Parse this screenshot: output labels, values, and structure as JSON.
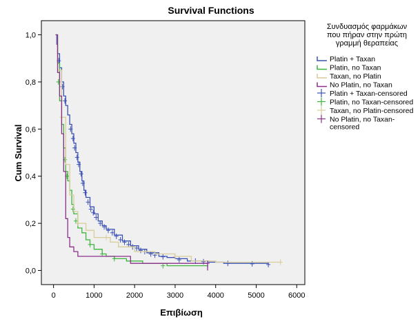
{
  "chart_data": {
    "type": "line",
    "title": "Survival Functions",
    "xlabel": "Επιβίωση",
    "ylabel": "Cum Survival",
    "xlim": [
      -300,
      6200
    ],
    "ylim": [
      -0.06,
      1.06
    ],
    "xticks": [
      "0",
      "1000",
      "2000",
      "3000",
      "4000",
      "5000",
      "6000"
    ],
    "yticks": [
      "0,0",
      "0,2",
      "0,4",
      "0,6",
      "0,8",
      "1,0"
    ],
    "grid": false,
    "legend": {
      "placement": "right",
      "title_lines": [
        "Συνδυασμός φαρμάκων",
        "που πήραν στην πρώτη",
        "γραμμή θεραπείας"
      ],
      "entries": [
        {
          "label_lines": [
            "Platin + Taxan"
          ],
          "color": "#3a50b4",
          "kind": "line"
        },
        {
          "label_lines": [
            "Platin, no Taxan"
          ],
          "color": "#3cb43c",
          "kind": "line"
        },
        {
          "label_lines": [
            "Taxan, no Platin"
          ],
          "color": "#d7cc9a",
          "kind": "line"
        },
        {
          "label_lines": [
            "No Platin, no Taxan"
          ],
          "color": "#8a2f8a",
          "kind": "line"
        },
        {
          "label_lines": [
            "Platin + Taxan-censored"
          ],
          "color": "#3a50b4",
          "kind": "censor"
        },
        {
          "label_lines": [
            "Platin, no Taxan-censored"
          ],
          "color": "#3cb43c",
          "kind": "censor"
        },
        {
          "label_lines": [
            "Taxan, no Platin-censored"
          ],
          "color": "#d7cc9a",
          "kind": "censor"
        },
        {
          "label_lines": [
            "No Platin, no Taxan-",
            "censored"
          ],
          "color": "#8a2f8a",
          "kind": "censor"
        }
      ]
    },
    "series": [
      {
        "name": "Platin + Taxan",
        "color": "#3a50b4",
        "points": [
          [
            50,
            1.0
          ],
          [
            80,
            0.96
          ],
          [
            100,
            0.92
          ],
          [
            150,
            0.86
          ],
          [
            200,
            0.8
          ],
          [
            250,
            0.74
          ],
          [
            300,
            0.7
          ],
          [
            350,
            0.66
          ],
          [
            400,
            0.62
          ],
          [
            450,
            0.58
          ],
          [
            500,
            0.54
          ],
          [
            550,
            0.5
          ],
          [
            600,
            0.46
          ],
          [
            650,
            0.42
          ],
          [
            700,
            0.38
          ],
          [
            750,
            0.34
          ],
          [
            800,
            0.31
          ],
          [
            900,
            0.27
          ],
          [
            1000,
            0.24
          ],
          [
            1100,
            0.21
          ],
          [
            1200,
            0.19
          ],
          [
            1300,
            0.175
          ],
          [
            1500,
            0.15
          ],
          [
            1700,
            0.125
          ],
          [
            1900,
            0.105
          ],
          [
            2100,
            0.09
          ],
          [
            2300,
            0.075
          ],
          [
            2600,
            0.06
          ],
          [
            2800,
            0.055
          ],
          [
            3000,
            0.05
          ],
          [
            3300,
            0.04
          ],
          [
            3800,
            0.035
          ],
          [
            4200,
            0.03
          ],
          [
            5300,
            0.025
          ]
        ],
        "censored": [
          [
            130,
            0.89
          ],
          [
            220,
            0.78
          ],
          [
            280,
            0.72
          ],
          [
            420,
            0.6
          ],
          [
            480,
            0.56
          ],
          [
            520,
            0.52
          ],
          [
            580,
            0.48
          ],
          [
            620,
            0.45
          ],
          [
            680,
            0.41
          ],
          [
            720,
            0.37
          ],
          [
            780,
            0.33
          ],
          [
            850,
            0.29
          ],
          [
            920,
            0.26
          ],
          [
            980,
            0.245
          ],
          [
            1050,
            0.225
          ],
          [
            1150,
            0.2
          ],
          [
            1250,
            0.185
          ],
          [
            1350,
            0.17
          ],
          [
            1450,
            0.16
          ],
          [
            1550,
            0.145
          ],
          [
            1650,
            0.13
          ],
          [
            1750,
            0.12
          ],
          [
            1850,
            0.11
          ],
          [
            1950,
            0.1
          ],
          [
            2050,
            0.095
          ],
          [
            2150,
            0.085
          ],
          [
            2250,
            0.08
          ],
          [
            2400,
            0.07
          ],
          [
            2500,
            0.065
          ],
          [
            2700,
            0.058
          ],
          [
            3100,
            0.045
          ],
          [
            3500,
            0.04
          ],
          [
            3700,
            0.037
          ],
          [
            4300,
            0.03
          ],
          [
            4900,
            0.028
          ],
          [
            5300,
            0.025
          ]
        ]
      },
      {
        "name": "Platin, no Taxan",
        "color": "#3cb43c",
        "points": [
          [
            50,
            1.0
          ],
          [
            100,
            0.88
          ],
          [
            150,
            0.72
          ],
          [
            200,
            0.62
          ],
          [
            250,
            0.52
          ],
          [
            300,
            0.42
          ],
          [
            350,
            0.38
          ],
          [
            400,
            0.34
          ],
          [
            450,
            0.28
          ],
          [
            500,
            0.24
          ],
          [
            600,
            0.18
          ],
          [
            700,
            0.16
          ],
          [
            800,
            0.13
          ],
          [
            900,
            0.11
          ],
          [
            1000,
            0.09
          ],
          [
            1200,
            0.07
          ],
          [
            1300,
            0.06
          ],
          [
            1500,
            0.05
          ],
          [
            1800,
            0.04
          ],
          [
            2200,
            0.03
          ],
          [
            2800,
            0.02
          ],
          [
            3800,
            0.015
          ]
        ],
        "censored": [
          [
            120,
            0.8
          ],
          [
            280,
            0.47
          ],
          [
            330,
            0.4
          ],
          [
            480,
            0.26
          ],
          [
            550,
            0.21
          ],
          [
            900,
            0.11
          ],
          [
            1200,
            0.07
          ],
          [
            1500,
            0.05
          ],
          [
            2700,
            0.02
          ]
        ]
      },
      {
        "name": "Taxan, no Platin",
        "color": "#d7cc9a",
        "points": [
          [
            50,
            1.0
          ],
          [
            100,
            0.85
          ],
          [
            200,
            0.65
          ],
          [
            300,
            0.45
          ],
          [
            400,
            0.32
          ],
          [
            500,
            0.25
          ],
          [
            600,
            0.2
          ],
          [
            800,
            0.17
          ],
          [
            1000,
            0.14
          ],
          [
            1300,
            0.14
          ],
          [
            1400,
            0.12
          ],
          [
            1600,
            0.1
          ],
          [
            2000,
            0.08
          ],
          [
            2500,
            0.07
          ],
          [
            3000,
            0.06
          ],
          [
            3400,
            0.04
          ],
          [
            4000,
            0.035
          ],
          [
            5600,
            0.035
          ]
        ],
        "censored": [
          [
            200,
            0.65
          ],
          [
            600,
            0.2
          ],
          [
            1300,
            0.14
          ],
          [
            3000,
            0.06
          ],
          [
            5600,
            0.035
          ]
        ]
      },
      {
        "name": "No Platin, no Taxan",
        "color": "#8a2f8a",
        "points": [
          [
            50,
            1.0
          ],
          [
            100,
            0.84
          ],
          [
            150,
            0.74
          ],
          [
            200,
            0.58
          ],
          [
            250,
            0.42
          ],
          [
            300,
            0.22
          ],
          [
            350,
            0.14
          ],
          [
            400,
            0.1
          ],
          [
            500,
            0.08
          ],
          [
            600,
            0.06
          ],
          [
            1700,
            0.06
          ],
          [
            1900,
            0.03
          ],
          [
            3800,
            0.03
          ],
          [
            3800,
            0.0
          ]
        ],
        "censored": [
          [
            3800,
            0.03
          ]
        ]
      }
    ]
  }
}
